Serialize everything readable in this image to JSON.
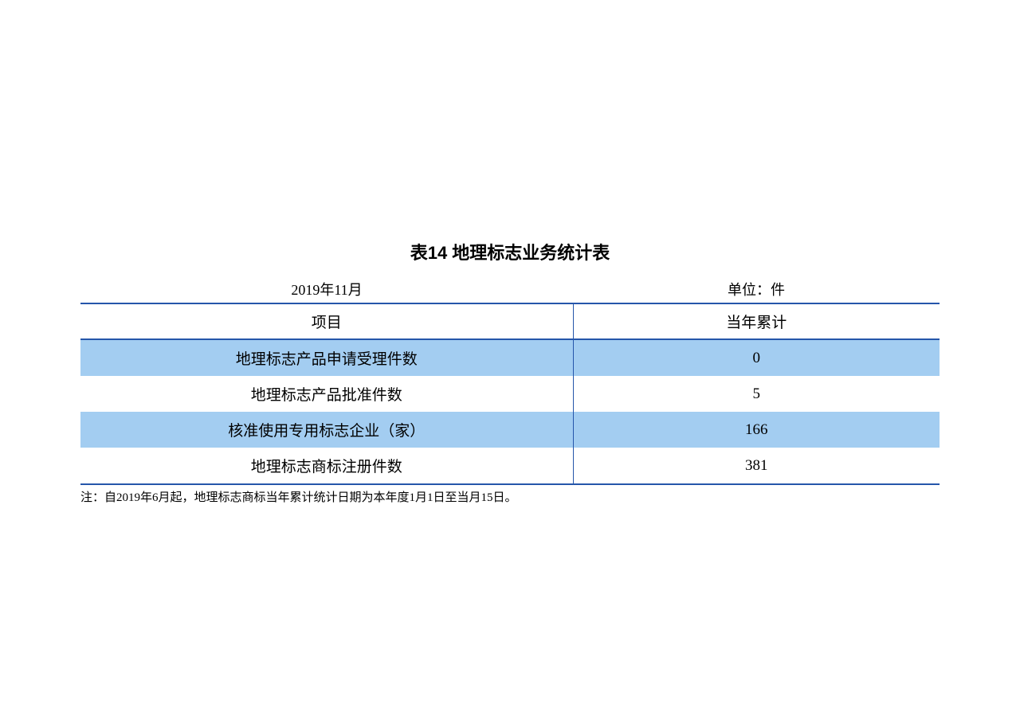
{
  "title": "表14 地理标志业务统计表",
  "date": "2019年11月",
  "unit": "单位：件",
  "columns": [
    "项目",
    "当年累计"
  ],
  "rows": [
    {
      "item": "地理标志产品申请受理件数",
      "value": "0"
    },
    {
      "item": "地理标志产品批准件数",
      "value": "5"
    },
    {
      "item": "核准使用专用标志企业（家）",
      "value": "166"
    },
    {
      "item": "地理标志商标注册件数",
      "value": "381"
    }
  ],
  "footnote": "注：自2019年6月起，地理标志商标当年累计统计日期为本年度1月1日至当月15日。",
  "colors": {
    "border": "#2556aa",
    "stripe": "#a3cdf1",
    "background": "#ffffff",
    "text": "#000000"
  },
  "typography": {
    "title_fontsize": 22,
    "body_fontsize": 19,
    "footnote_fontsize": 15
  },
  "layout": {
    "col_item_width": 618,
    "col_value_width": 460,
    "container_width": 1078
  }
}
